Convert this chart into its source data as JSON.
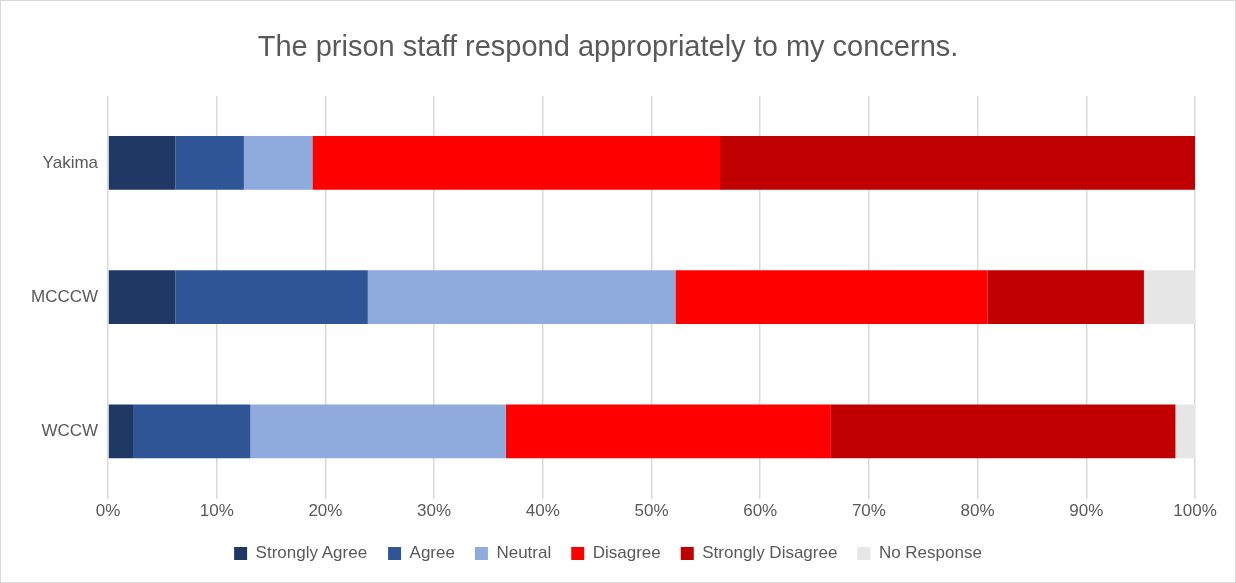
{
  "chart_data": {
    "type": "bar",
    "title": "The prison staff respond appropriately to my concerns.",
    "orientation": "horizontal",
    "stacked": true,
    "categories": [
      "Yakima",
      "MCCCW",
      "WCCW"
    ],
    "series": [
      {
        "name": "Strongly Agree",
        "color": "#203864",
        "values": [
          6.2,
          6.2,
          2.3
        ]
      },
      {
        "name": "Agree",
        "color": "#2f5597",
        "values": [
          6.3,
          17.7,
          10.8
        ]
      },
      {
        "name": "Neutral",
        "color": "#8faadc",
        "values": [
          6.3,
          28.3,
          23.5
        ]
      },
      {
        "name": "Disagree",
        "color": "#ff0000",
        "values": [
          37.5,
          28.7,
          29.9
        ]
      },
      {
        "name": "Strongly Disagree",
        "color": "#c00000",
        "values": [
          43.7,
          14.4,
          31.7
        ]
      },
      {
        "name": "No Response",
        "color": "#e7e6e6",
        "values": [
          0,
          4.7,
          1.8
        ]
      }
    ],
    "xlim": [
      0,
      100
    ],
    "xticks": [
      {
        "value": 0,
        "label": "0%"
      },
      {
        "value": 10,
        "label": "10%"
      },
      {
        "value": 20,
        "label": "20%"
      },
      {
        "value": 30,
        "label": "30%"
      },
      {
        "value": 40,
        "label": "40%"
      },
      {
        "value": 50,
        "label": "50%"
      },
      {
        "value": 60,
        "label": "60%"
      },
      {
        "value": 70,
        "label": "70%"
      },
      {
        "value": 80,
        "label": "80%"
      },
      {
        "value": 90,
        "label": "90%"
      },
      {
        "value": 100,
        "label": "100%"
      }
    ],
    "grid": "x",
    "legend": "bottom"
  }
}
